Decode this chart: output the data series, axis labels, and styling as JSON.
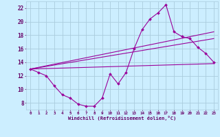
{
  "background_color": "#cceeff",
  "grid_color": "#aaccdd",
  "line_color": "#990099",
  "marker_color": "#990099",
  "xlabel": "Windchill (Refroidissement éolien,°C)",
  "xlabel_color": "#660066",
  "tick_color": "#660066",
  "xlim": [
    -0.5,
    23.5
  ],
  "ylim": [
    7,
    23
  ],
  "yticks": [
    8,
    10,
    12,
    14,
    16,
    18,
    20,
    22
  ],
  "xticks": [
    0,
    1,
    2,
    3,
    4,
    5,
    6,
    7,
    8,
    9,
    10,
    11,
    12,
    13,
    14,
    15,
    16,
    17,
    18,
    19,
    20,
    21,
    22,
    23
  ],
  "series1_x": [
    0,
    1,
    2,
    3,
    4,
    5,
    6,
    7,
    8,
    9,
    10,
    11,
    12,
    13,
    14,
    15,
    16,
    17,
    18,
    19,
    20,
    21,
    22,
    23
  ],
  "series1_y": [
    13.0,
    12.5,
    12.0,
    10.5,
    9.2,
    8.7,
    7.8,
    7.5,
    7.5,
    8.7,
    12.3,
    10.8,
    12.5,
    16.0,
    18.8,
    20.4,
    21.3,
    22.5,
    18.5,
    17.8,
    17.5,
    16.2,
    15.3,
    14.0
  ],
  "series2_x": [
    0,
    23
  ],
  "series2_y": [
    13.0,
    13.8
  ],
  "series3_x": [
    0,
    23
  ],
  "series3_y": [
    13.0,
    18.5
  ],
  "series4_x": [
    0,
    23
  ],
  "series4_y": [
    13.0,
    17.5
  ]
}
